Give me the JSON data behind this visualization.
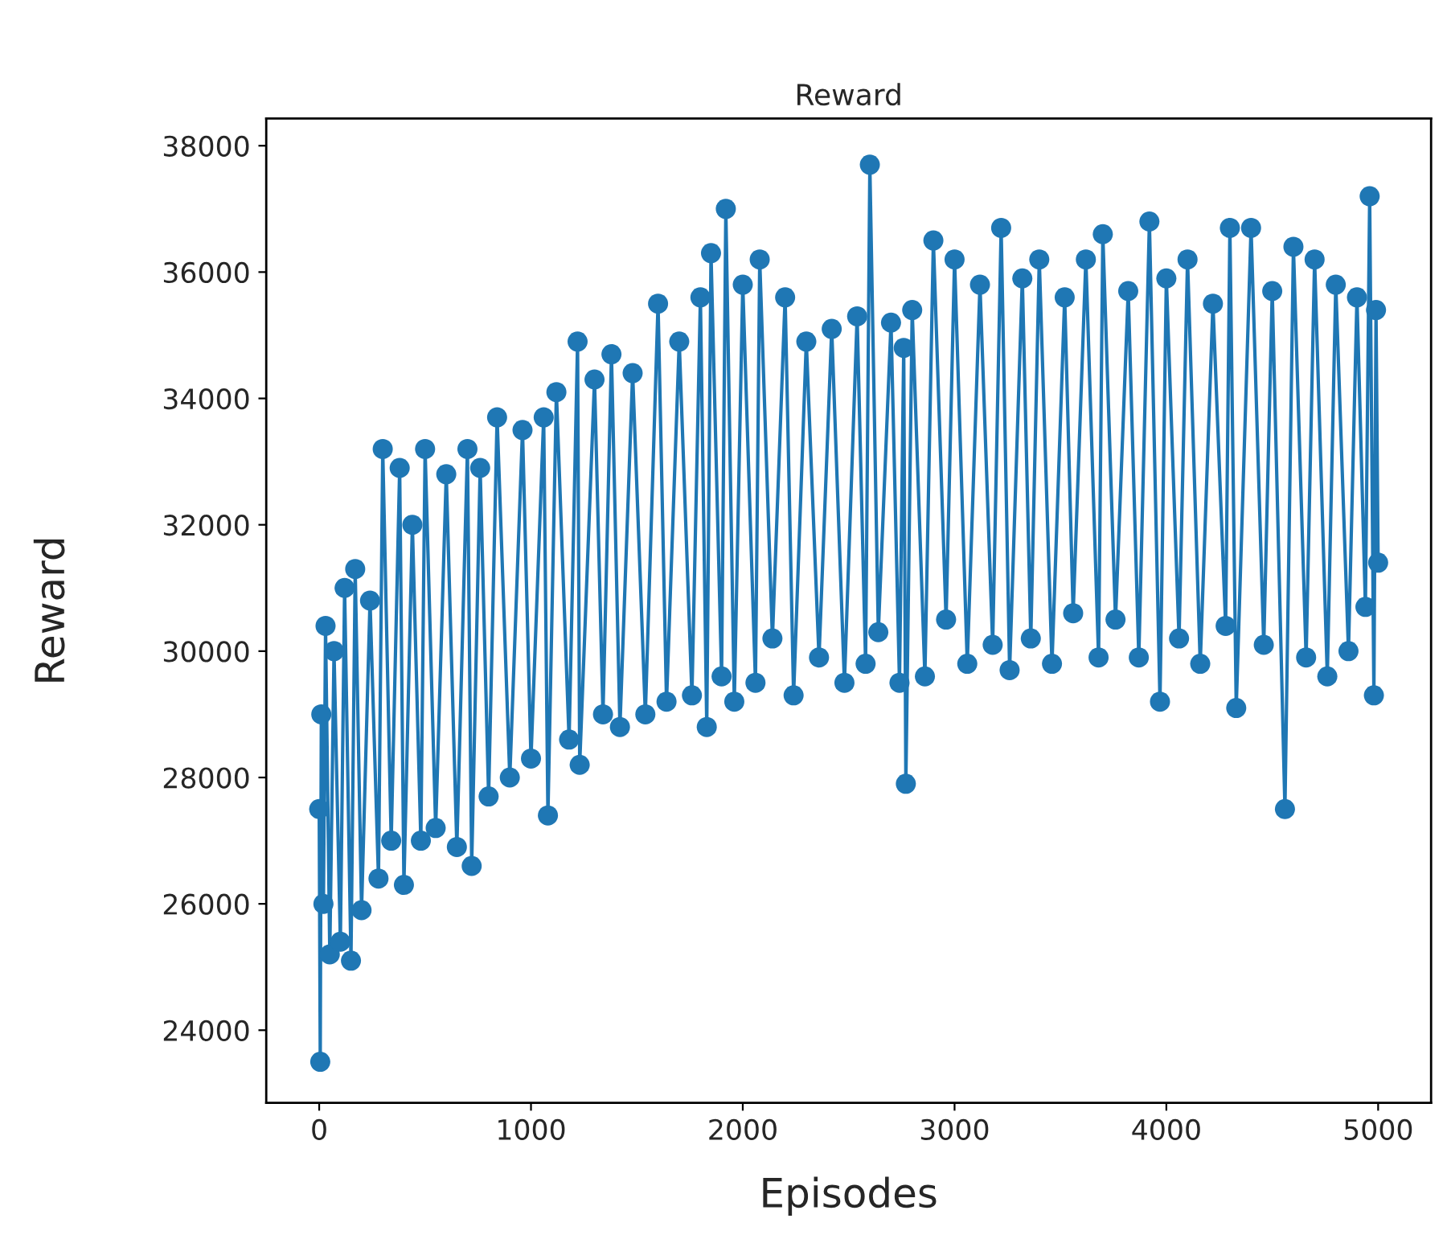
{
  "chart_data": {
    "type": "line",
    "title": "Reward",
    "xlabel": "Episodes",
    "ylabel": "Reward",
    "marker": "circle",
    "line_style": "solid",
    "grid": false,
    "legend": false,
    "xlim": [
      -250,
      5250
    ],
    "xticks": [
      0,
      1000,
      2000,
      3000,
      4000,
      5000
    ],
    "ylim": [
      22850,
      38430
    ],
    "yticks": [
      24000,
      26000,
      28000,
      30000,
      32000,
      34000,
      36000,
      38000
    ],
    "series": [
      {
        "color": "#1f77b4",
        "x": [
          0,
          5,
          10,
          20,
          30,
          50,
          70,
          100,
          120,
          150,
          170,
          200,
          240,
          280,
          300,
          340,
          380,
          400,
          440,
          480,
          500,
          550,
          600,
          650,
          700,
          720,
          760,
          800,
          840,
          900,
          960,
          1000,
          1060,
          1080,
          1120,
          1180,
          1220,
          1230,
          1300,
          1340,
          1380,
          1420,
          1480,
          1540,
          1600,
          1640,
          1700,
          1760,
          1800,
          1830,
          1850,
          1900,
          1920,
          1960,
          2000,
          2060,
          2080,
          2140,
          2200,
          2240,
          2300,
          2360,
          2420,
          2480,
          2540,
          2580,
          2600,
          2640,
          2700,
          2740,
          2760,
          2770,
          2800,
          2860,
          2900,
          2960,
          3000,
          3060,
          3120,
          3180,
          3220,
          3260,
          3320,
          3360,
          3400,
          3460,
          3520,
          3560,
          3620,
          3680,
          3700,
          3760,
          3820,
          3870,
          3920,
          3970,
          4000,
          4060,
          4100,
          4160,
          4220,
          4280,
          4300,
          4330,
          4400,
          4460,
          4500,
          4560,
          4600,
          4660,
          4700,
          4760,
          4800,
          4860,
          4900,
          4940,
          4960,
          4980,
          4990,
          5000
        ],
        "values": [
          27500,
          23500,
          29000,
          26000,
          30400,
          25200,
          30000,
          25400,
          31000,
          25100,
          31300,
          25900,
          30800,
          26400,
          33200,
          27000,
          32900,
          26300,
          32000,
          27000,
          33200,
          27200,
          32800,
          26900,
          33200,
          26600,
          32900,
          27700,
          33700,
          28000,
          33500,
          28300,
          33700,
          27400,
          34100,
          28600,
          34900,
          28200,
          34300,
          29000,
          34700,
          28800,
          34400,
          29000,
          35500,
          29200,
          34900,
          29300,
          35600,
          28800,
          36300,
          29600,
          37000,
          29200,
          35800,
          29500,
          36200,
          30200,
          35600,
          29300,
          34900,
          29900,
          35100,
          29500,
          35300,
          29800,
          37700,
          30300,
          35200,
          29500,
          34800,
          27900,
          35400,
          29600,
          36500,
          30500,
          36200,
          29800,
          35800,
          30100,
          36700,
          29700,
          35900,
          30200,
          36200,
          29800,
          35600,
          30600,
          36200,
          29900,
          36600,
          30500,
          35700,
          29900,
          36800,
          29200,
          35900,
          30200,
          36200,
          29800,
          35500,
          30400,
          36700,
          29100,
          36700,
          30100,
          35700,
          27500,
          36400,
          29900,
          36200,
          29600,
          35800,
          30000,
          35600,
          30700,
          37200,
          29300,
          35400,
          31400
        ]
      }
    ]
  }
}
